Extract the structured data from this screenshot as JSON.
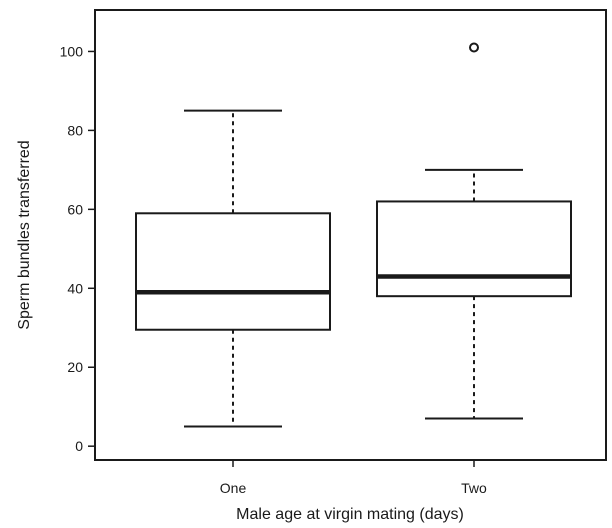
{
  "chart_data": {
    "type": "box",
    "xlabel": "Male age at virgin mating (days)",
    "ylabel": "Sperm bundles transferred",
    "categories": [
      "One",
      "Two"
    ],
    "ylim": [
      -3.5,
      110.5
    ],
    "yticks": [
      "0",
      "20",
      "40",
      "60",
      "80",
      "100"
    ],
    "grid": false,
    "boxes": [
      {
        "category": "One",
        "whisker_low": 5,
        "q1": 29.5,
        "median": 39,
        "q3": 59,
        "whisker_high": 85,
        "outliers": []
      },
      {
        "category": "Two",
        "whisker_low": 7,
        "q1": 38,
        "median": 43,
        "q3": 62,
        "whisker_high": 70,
        "outliers": [
          101
        ]
      }
    ]
  }
}
